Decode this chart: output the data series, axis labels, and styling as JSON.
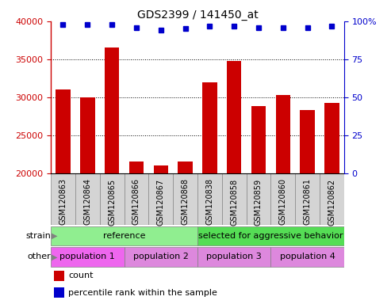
{
  "title": "GDS2399 / 141450_at",
  "samples": [
    "GSM120863",
    "GSM120864",
    "GSM120865",
    "GSM120866",
    "GSM120867",
    "GSM120868",
    "GSM120838",
    "GSM120858",
    "GSM120859",
    "GSM120860",
    "GSM120861",
    "GSM120862"
  ],
  "counts": [
    31000,
    30000,
    36500,
    21500,
    21000,
    21500,
    32000,
    34800,
    28800,
    30300,
    28300,
    29300
  ],
  "percentile_ranks": [
    98,
    98,
    98,
    96,
    94,
    95,
    97,
    97,
    96,
    96,
    96,
    97
  ],
  "ylim": [
    20000,
    40000
  ],
  "yticks": [
    20000,
    25000,
    30000,
    35000,
    40000
  ],
  "right_yticks": [
    0,
    25,
    50,
    75,
    100
  ],
  "bar_color": "#cc0000",
  "dot_color": "#0000cc",
  "bar_width": 0.6,
  "strain_groups": [
    {
      "text": "reference",
      "start": 0,
      "end": 5,
      "color": "#90ee90"
    },
    {
      "text": "selected for aggressive behavior",
      "start": 6,
      "end": 11,
      "color": "#55dd55"
    }
  ],
  "other_groups": [
    {
      "text": "population 1",
      "start": 0,
      "end": 2,
      "color": "#ee66ee"
    },
    {
      "text": "population 2",
      "start": 3,
      "end": 5,
      "color": "#dd88dd"
    },
    {
      "text": "population 3",
      "start": 6,
      "end": 8,
      "color": "#dd88dd"
    },
    {
      "text": "population 4",
      "start": 9,
      "end": 11,
      "color": "#dd88dd"
    }
  ],
  "strain_row_label": "strain",
  "other_row_label": "other",
  "legend_count_label": "count",
  "legend_pct_label": "percentile rank within the sample",
  "tick_label_color_left": "#cc0000",
  "tick_label_color_right": "#0000cc",
  "background_color": "#ffffff",
  "sample_box_color": "#d4d4d4",
  "sample_box_edge_color": "#888888"
}
